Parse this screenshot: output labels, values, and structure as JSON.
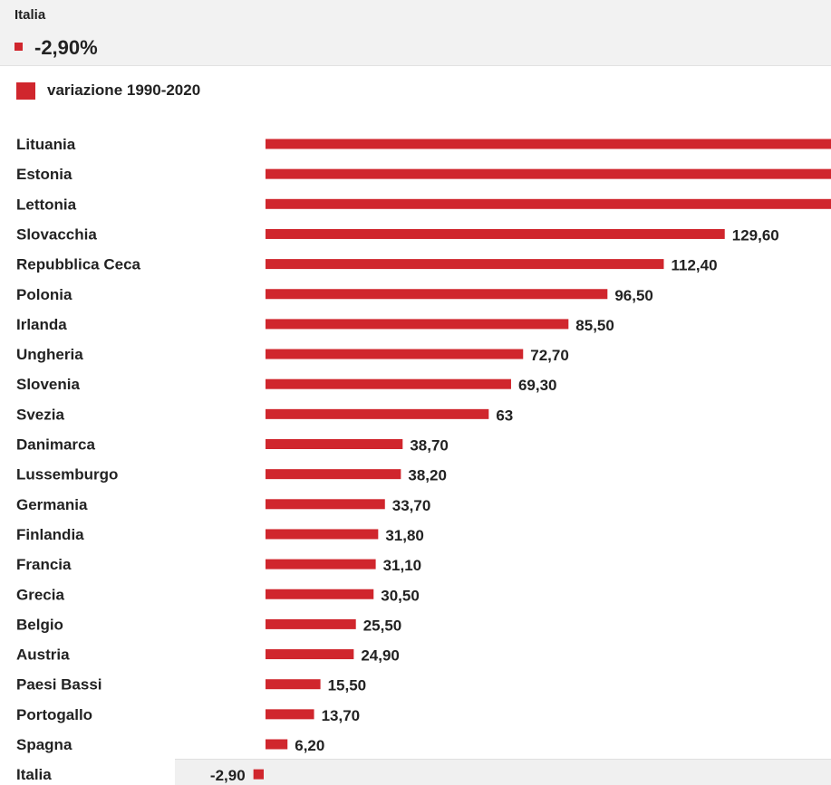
{
  "tooltip": {
    "label": "Italia",
    "value": "-2,90%"
  },
  "colors": {
    "bar": "#d0262d",
    "text": "#222222",
    "tooltip_bg": "#f2f2f2"
  },
  "chart_data": {
    "type": "bar",
    "orientation": "horizontal",
    "title": "",
    "xlabel": "",
    "ylabel": "",
    "legend": [
      "variazione 1990-2020"
    ],
    "legend_position": "top-left",
    "grid": false,
    "xlim": [
      -2.9,
      145
    ],
    "categories": [
      "Lituania",
      "Estonia",
      "Lettonia",
      "Slovacchia",
      "Repubblica Ceca",
      "Polonia",
      "Irlanda",
      "Ungheria",
      "Slovenia",
      "Svezia",
      "Danimarca",
      "Lussemburgo",
      "Germania",
      "Finlandia",
      "Francia",
      "Grecia",
      "Belgio",
      "Austria",
      "Paesi Bassi",
      "Portogallo",
      "Spagna",
      "Italia"
    ],
    "series": [
      {
        "name": "variazione 1990-2020",
        "values": [
          null,
          null,
          null,
          129.6,
          112.4,
          96.5,
          85.5,
          72.7,
          69.3,
          63,
          38.7,
          38.2,
          33.7,
          31.8,
          31.1,
          30.5,
          25.5,
          24.9,
          15.5,
          13.7,
          6.2,
          -2.9
        ],
        "labels": [
          "",
          "",
          "",
          "129,60",
          "112,40",
          "96,50",
          "85,50",
          "72,70",
          "69,30",
          "63",
          "38,70",
          "38,20",
          "33,70",
          "31,80",
          "31,10",
          "30,50",
          "25,50",
          "24,90",
          "15,50",
          "13,70",
          "6,20",
          "-2,90"
        ],
        "clipped": [
          true,
          true,
          true,
          false,
          false,
          false,
          false,
          false,
          false,
          false,
          false,
          false,
          false,
          false,
          false,
          false,
          false,
          false,
          false,
          false,
          false,
          false
        ]
      }
    ],
    "highlighted_category": "Italia"
  }
}
